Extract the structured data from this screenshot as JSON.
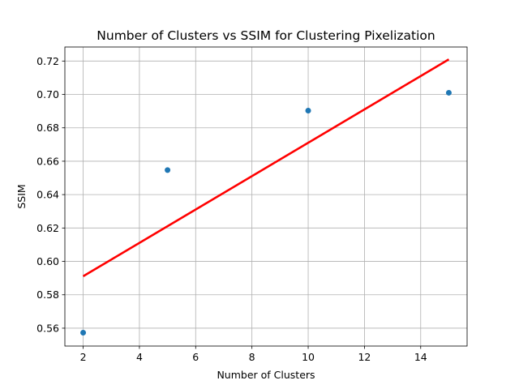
{
  "chart_data": {
    "type": "scatter",
    "title": "Number of Clusters vs SSIM for Clustering Pixelization",
    "xlabel": "Number of Clusters",
    "ylabel": "SSIM",
    "xlim": [
      1.35,
      15.65
    ],
    "ylim": [
      0.5493,
      0.7284
    ],
    "xticks": [
      2,
      4,
      6,
      8,
      10,
      12,
      14
    ],
    "yticks": [
      0.56,
      0.58,
      0.6,
      0.62,
      0.64,
      0.66,
      0.68,
      0.7,
      0.72
    ],
    "grid": true,
    "legend": "none",
    "series": [
      {
        "kind": "scatter",
        "color": "#1f77b4",
        "points": [
          {
            "x": 2,
            "y": 0.5573
          },
          {
            "x": 5,
            "y": 0.6547
          },
          {
            "x": 10,
            "y": 0.6903
          },
          {
            "x": 15,
            "y": 0.701
          }
        ]
      },
      {
        "kind": "line",
        "color": "#ff0000",
        "points": [
          {
            "x": 2,
            "y": 0.5911
          },
          {
            "x": 15,
            "y": 0.721
          }
        ]
      }
    ]
  }
}
